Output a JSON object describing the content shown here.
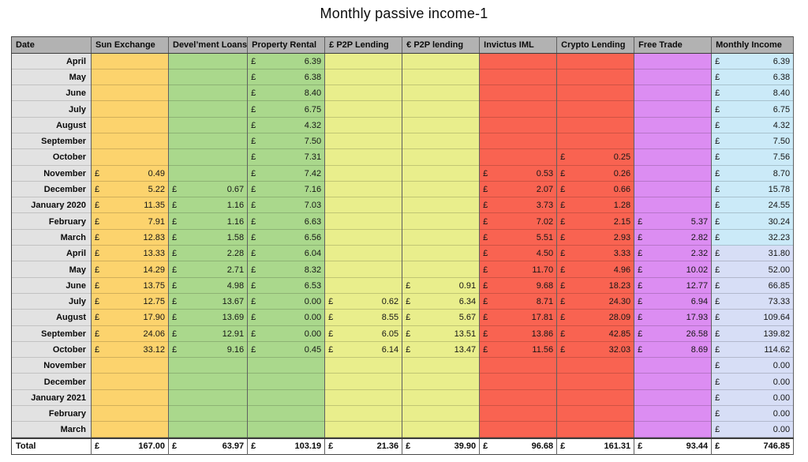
{
  "title": "Monthly passive income-1",
  "table": {
    "currency": "£",
    "columns": [
      {
        "key": "date",
        "label": "Date"
      },
      {
        "key": "sun-exchange",
        "label": "Sun Exchange"
      },
      {
        "key": "develment-loans",
        "label": "Devel’ment Loans"
      },
      {
        "key": "property-rental",
        "label": "Property Rental"
      },
      {
        "key": "gbp-p2p-lending",
        "label": "£ P2P Lending"
      },
      {
        "key": "eur-p2p-lending",
        "label": "€ P2P lending"
      },
      {
        "key": "invictus-iml",
        "label": "Invictus IML"
      },
      {
        "key": "crypto-lending",
        "label": "Crypto Lending"
      },
      {
        "key": "free-trade",
        "label": "Free Trade"
      },
      {
        "key": "monthly-income",
        "label": "Monthly Income"
      }
    ],
    "rows": [
      {
        "date": "April",
        "mi": "y1",
        "values": [
          null,
          null,
          "6.39",
          null,
          null,
          null,
          null,
          null,
          "6.39"
        ]
      },
      {
        "date": "May",
        "mi": "y1",
        "values": [
          null,
          null,
          "6.38",
          null,
          null,
          null,
          null,
          null,
          "6.38"
        ]
      },
      {
        "date": "June",
        "mi": "y1",
        "values": [
          null,
          null,
          "8.40",
          null,
          null,
          null,
          null,
          null,
          "8.40"
        ]
      },
      {
        "date": "July",
        "mi": "y1",
        "values": [
          null,
          null,
          "6.75",
          null,
          null,
          null,
          null,
          null,
          "6.75"
        ]
      },
      {
        "date": "August",
        "mi": "y1",
        "values": [
          null,
          null,
          "4.32",
          null,
          null,
          null,
          null,
          null,
          "4.32"
        ]
      },
      {
        "date": "September",
        "mi": "y1",
        "values": [
          null,
          null,
          "7.50",
          null,
          null,
          null,
          null,
          null,
          "7.50"
        ]
      },
      {
        "date": "October",
        "mi": "y1",
        "values": [
          null,
          null,
          "7.31",
          null,
          null,
          null,
          "0.25",
          null,
          "7.56"
        ]
      },
      {
        "date": "November",
        "mi": "y1",
        "values": [
          "0.49",
          null,
          "7.42",
          null,
          null,
          "0.53",
          "0.26",
          null,
          "8.70"
        ]
      },
      {
        "date": "December",
        "mi": "y1",
        "values": [
          "5.22",
          "0.67",
          "7.16",
          null,
          null,
          "2.07",
          "0.66",
          null,
          "15.78"
        ]
      },
      {
        "date": "January 2020",
        "mi": "y1",
        "values": [
          "11.35",
          "1.16",
          "7.03",
          null,
          null,
          "3.73",
          "1.28",
          null,
          "24.55"
        ]
      },
      {
        "date": "February",
        "mi": "y1",
        "values": [
          "7.91",
          "1.16",
          "6.63",
          null,
          null,
          "7.02",
          "2.15",
          "5.37",
          "30.24"
        ]
      },
      {
        "date": "March",
        "mi": "y1",
        "values": [
          "12.83",
          "1.58",
          "6.56",
          null,
          null,
          "5.51",
          "2.93",
          "2.82",
          "32.23"
        ]
      },
      {
        "date": "April",
        "mi": "y2",
        "values": [
          "13.33",
          "2.28",
          "6.04",
          null,
          null,
          "4.50",
          "3.33",
          "2.32",
          "31.80"
        ]
      },
      {
        "date": "May",
        "mi": "y2",
        "values": [
          "14.29",
          "2.71",
          "8.32",
          null,
          null,
          "11.70",
          "4.96",
          "10.02",
          "52.00"
        ]
      },
      {
        "date": "June",
        "mi": "y2",
        "values": [
          "13.75",
          "4.98",
          "6.53",
          null,
          "0.91",
          "9.68",
          "18.23",
          "12.77",
          "66.85"
        ]
      },
      {
        "date": "July",
        "mi": "y2",
        "values": [
          "12.75",
          "13.67",
          "0.00",
          "0.62",
          "6.34",
          "8.71",
          "24.30",
          "6.94",
          "73.33"
        ]
      },
      {
        "date": "August",
        "mi": "y2",
        "values": [
          "17.90",
          "13.69",
          "0.00",
          "8.55",
          "5.67",
          "17.81",
          "28.09",
          "17.93",
          "109.64"
        ]
      },
      {
        "date": "September",
        "mi": "y2",
        "values": [
          "24.06",
          "12.91",
          "0.00",
          "6.05",
          "13.51",
          "13.86",
          "42.85",
          "26.58",
          "139.82"
        ]
      },
      {
        "date": "October",
        "mi": "y2",
        "values": [
          "33.12",
          "9.16",
          "0.45",
          "6.14",
          "13.47",
          "11.56",
          "32.03",
          "8.69",
          "114.62"
        ]
      },
      {
        "date": "November",
        "mi": "y2",
        "values": [
          null,
          null,
          null,
          null,
          null,
          null,
          null,
          null,
          "0.00"
        ]
      },
      {
        "date": "December",
        "mi": "y2",
        "values": [
          null,
          null,
          null,
          null,
          null,
          null,
          null,
          null,
          "0.00"
        ]
      },
      {
        "date": "January 2021",
        "mi": "y2",
        "values": [
          null,
          null,
          null,
          null,
          null,
          null,
          null,
          null,
          "0.00"
        ]
      },
      {
        "date": "February",
        "mi": "y2",
        "values": [
          null,
          null,
          null,
          null,
          null,
          null,
          null,
          null,
          "0.00"
        ]
      },
      {
        "date": "March",
        "mi": "y2",
        "values": [
          null,
          null,
          null,
          null,
          null,
          null,
          null,
          null,
          "0.00"
        ]
      }
    ],
    "total_label": "Total",
    "totals": [
      "167.00",
      "63.97",
      "103.19",
      "21.36",
      "39.90",
      "96.68",
      "161.31",
      "93.44",
      "746.85"
    ]
  },
  "colors": {
    "header_bg": "#b2b2b2",
    "date_col_bg": "#e2e2e2",
    "col_bg": [
      "#fcd36d",
      "#aad88c",
      "#aad88c",
      "#e9ee8c",
      "#e9ee8c",
      "#f96351",
      "#f96351",
      "#dc8df2",
      null
    ],
    "monthly_income_y1": "#cbeaf8",
    "monthly_income_y2": "#d7def6",
    "total_bg": "#ffffff"
  }
}
